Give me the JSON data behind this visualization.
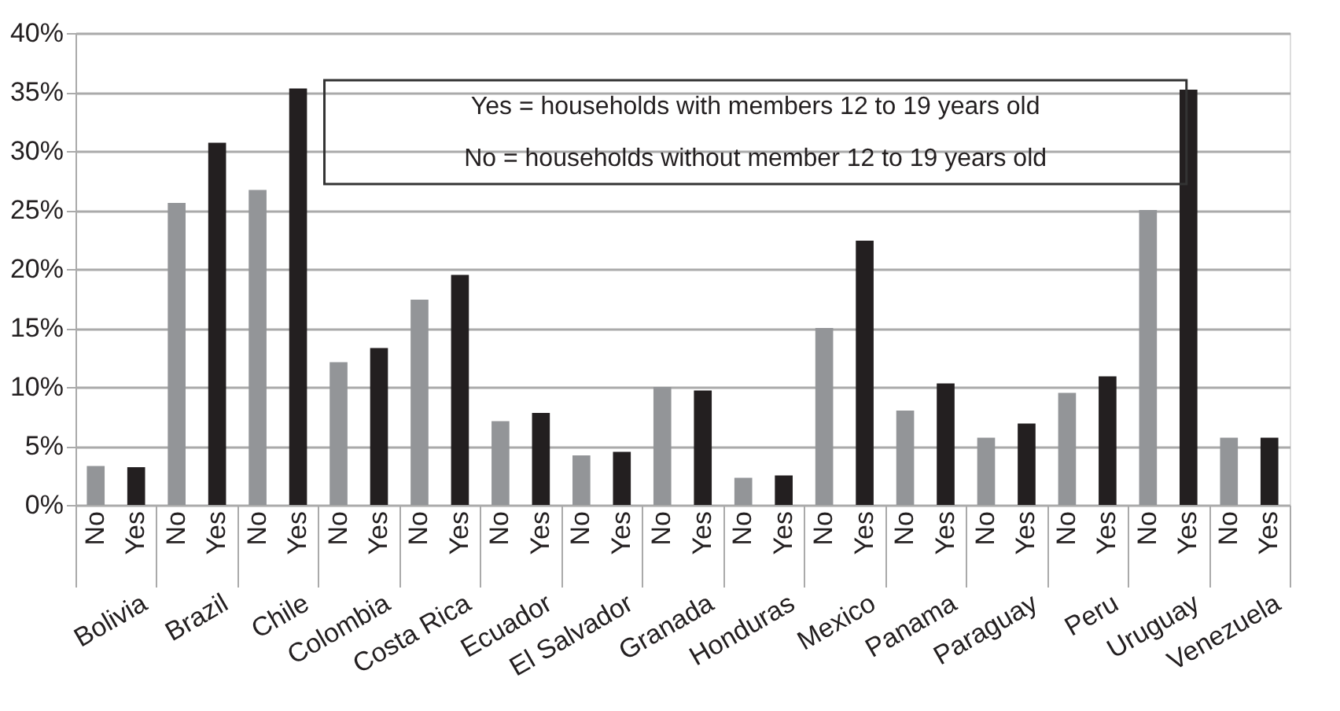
{
  "chart_data": {
    "type": "bar",
    "categories": [
      "Bolivia",
      "Brazil",
      "Chile",
      "Colombia",
      "Costa Rica",
      "Ecuador",
      "El Salvador",
      "Granada",
      "Honduras",
      "Mexico",
      "Panama",
      "Paraguay",
      "Peru",
      "Uruguay",
      "Venezuela"
    ],
    "series": [
      {
        "name": "No",
        "color": "#939598",
        "values": [
          3.3,
          25.6,
          26.7,
          12.1,
          17.4,
          7.1,
          4.2,
          10.0,
          2.3,
          15.0,
          8.0,
          5.7,
          9.5,
          25.0,
          5.7
        ]
      },
      {
        "name": "Yes",
        "color": "#231f20",
        "values": [
          3.2,
          30.7,
          35.3,
          13.3,
          19.5,
          7.8,
          4.5,
          9.7,
          2.5,
          22.4,
          10.3,
          6.9,
          10.9,
          35.2,
          5.7
        ]
      }
    ],
    "ylim": [
      0,
      40
    ],
    "yticks": [
      {
        "value": 0,
        "label": "0%"
      },
      {
        "value": 5,
        "label": "5%"
      },
      {
        "value": 10,
        "label": "10%"
      },
      {
        "value": 15,
        "label": "15%"
      },
      {
        "value": 20,
        "label": "20%"
      },
      {
        "value": 25,
        "label": "25%"
      },
      {
        "value": 30,
        "label": "30%"
      },
      {
        "value": 35,
        "label": "35%"
      },
      {
        "value": 40,
        "label": "40%"
      }
    ],
    "grid": "y",
    "legend": false,
    "annotations": [
      "Yes = households with members 12 to 19 years old",
      "No = households without member 12 to 19 years old"
    ]
  }
}
